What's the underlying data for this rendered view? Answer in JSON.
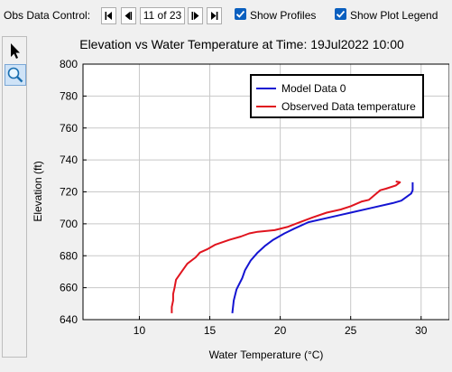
{
  "toolbar": {
    "obs_label": "Obs Data Control:",
    "page_indicator": "11 of 23",
    "show_profiles_label": "Show Profiles",
    "show_plot_legend_label": "Show Plot Legend"
  },
  "colors": {
    "model": "#1414d2",
    "observed": "#e0141e",
    "grid": "#c8c8c8",
    "checkbox": "#0a5fbf"
  },
  "chart_data": {
    "type": "line",
    "title": "Elevation vs Water Temperature at Time: 19Jul2022 10:00",
    "xlabel": "Water Temperature (°C)",
    "ylabel": "Elevation (ft)",
    "xlim": [
      6,
      32
    ],
    "ylim": [
      640,
      800
    ],
    "xticks": [
      10,
      15,
      20,
      25,
      30
    ],
    "yticks": [
      640,
      660,
      680,
      700,
      720,
      740,
      760,
      780,
      800
    ],
    "grid": true,
    "legend_position": "top-right",
    "series": [
      {
        "name": "Model Data  0",
        "points": [
          [
            16.6,
            644
          ],
          [
            16.7,
            652
          ],
          [
            16.9,
            659
          ],
          [
            17.3,
            666
          ],
          [
            17.5,
            671
          ],
          [
            17.9,
            677
          ],
          [
            18.4,
            682
          ],
          [
            18.9,
            686
          ],
          [
            19.5,
            690
          ],
          [
            20.3,
            694
          ],
          [
            21.0,
            697
          ],
          [
            22.0,
            701
          ],
          [
            23.5,
            704
          ],
          [
            25.0,
            707
          ],
          [
            26.5,
            710
          ],
          [
            28.0,
            713
          ],
          [
            28.6,
            714.5
          ],
          [
            29.3,
            719
          ],
          [
            29.4,
            721
          ],
          [
            29.4,
            724
          ],
          [
            29.4,
            726
          ]
        ]
      },
      {
        "name": "Observed Data temperature",
        "points": [
          [
            12.3,
            644
          ],
          [
            12.3,
            648
          ],
          [
            12.4,
            652
          ],
          [
            12.4,
            656
          ],
          [
            12.5,
            660
          ],
          [
            12.6,
            665
          ],
          [
            13.0,
            670
          ],
          [
            13.4,
            675
          ],
          [
            14.0,
            679
          ],
          [
            14.3,
            682
          ],
          [
            14.8,
            684
          ],
          [
            15.4,
            687
          ],
          [
            16.4,
            690
          ],
          [
            17.2,
            692
          ],
          [
            17.8,
            694
          ],
          [
            18.4,
            695
          ],
          [
            19.6,
            696
          ],
          [
            20.5,
            698
          ],
          [
            21.4,
            701
          ],
          [
            22.3,
            704
          ],
          [
            23.3,
            707
          ],
          [
            24.3,
            709
          ],
          [
            25.0,
            711
          ],
          [
            25.8,
            714
          ],
          [
            26.3,
            715
          ],
          [
            26.7,
            718
          ],
          [
            27.1,
            721
          ],
          [
            27.5,
            722
          ],
          [
            28.2,
            724
          ],
          [
            28.5,
            726
          ],
          [
            28.2,
            726.5
          ]
        ]
      }
    ]
  }
}
